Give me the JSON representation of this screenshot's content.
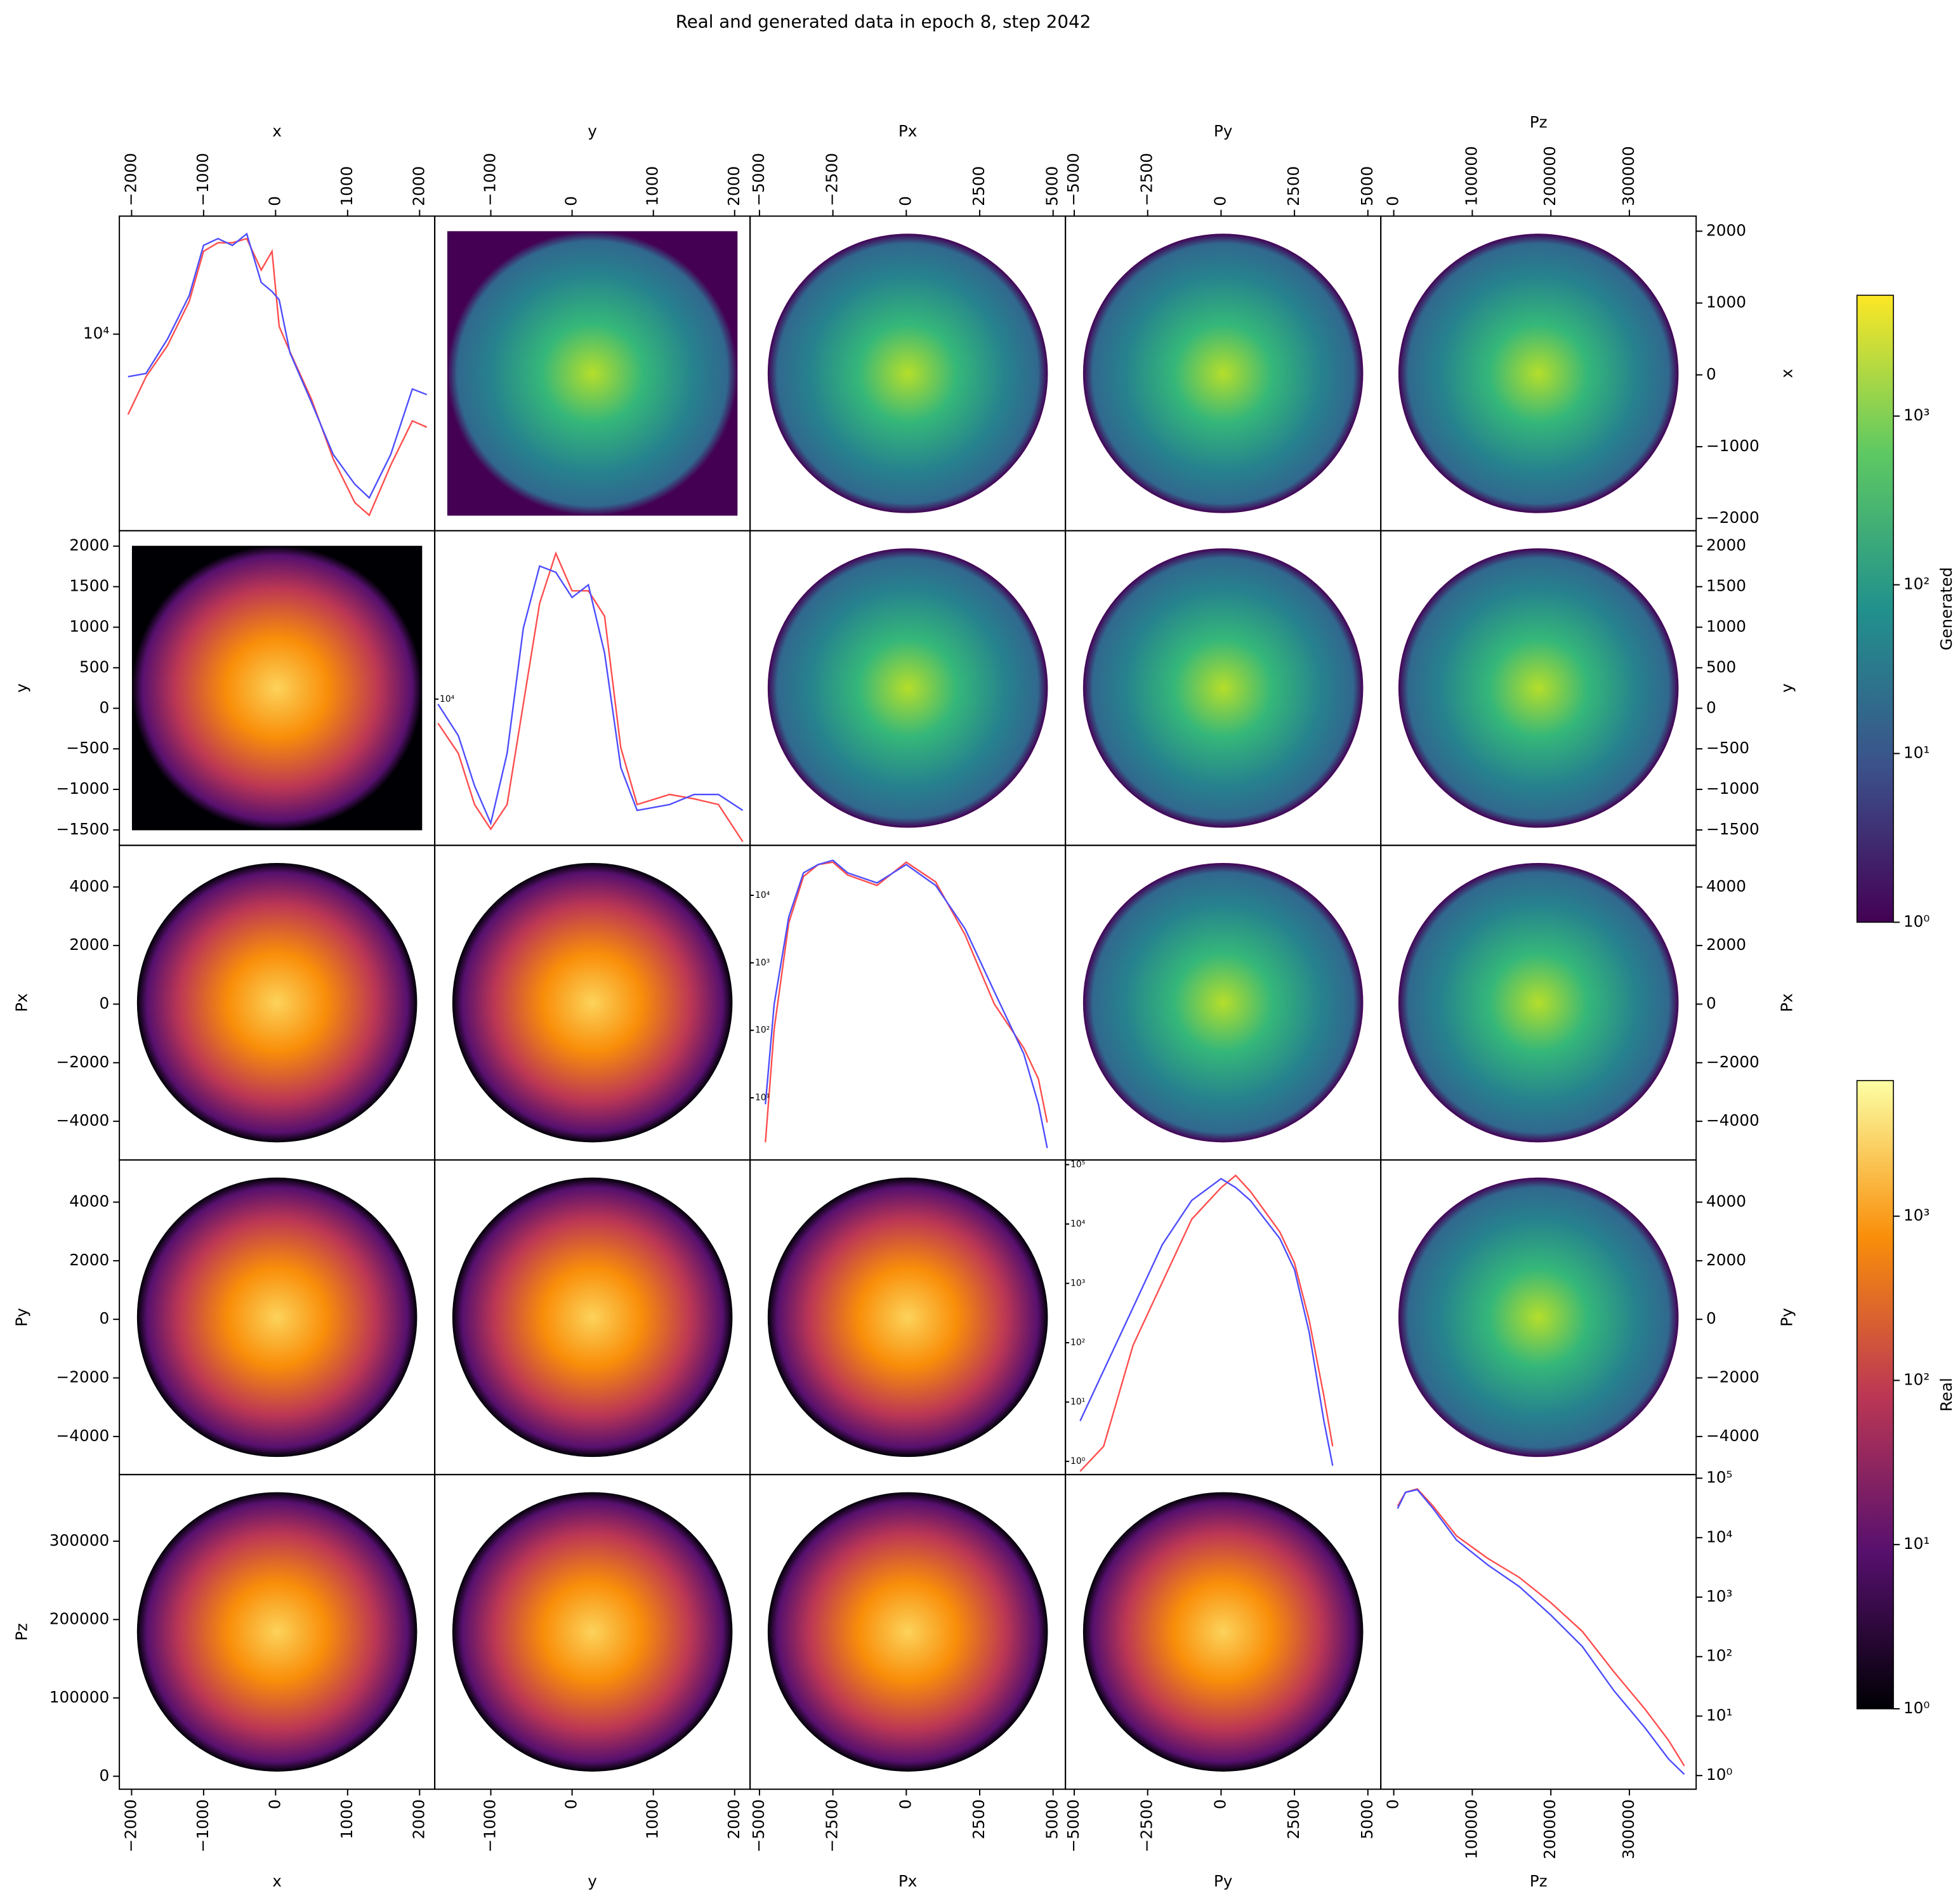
{
  "chart_data": {
    "type": "pairplot",
    "title": "Real and generated data in epoch 8, step 2042",
    "log_scale": true,
    "variables": [
      {
        "name": "x",
        "lim": [
          -2170,
          2210
        ],
        "col_ticks": [
          {
            "value": -2000,
            "label": "−2000"
          },
          {
            "value": -1000,
            "label": "−1000"
          },
          0,
          1000,
          2000
        ],
        "row_ticks": [
          {
            "value": -2000,
            "label": "−2000"
          },
          {
            "value": -1000,
            "label": "−1000"
          },
          0,
          1000,
          2000
        ]
      },
      {
        "name": "y",
        "lim": [
          -1690,
          2190
        ],
        "col_ticks": [
          {
            "value": -1000,
            "label": "−1000"
          },
          0,
          1000,
          2000
        ],
        "row_ticks": [
          {
            "value": -1500,
            "label": "−1500"
          },
          {
            "value": -1000,
            "label": "−1000"
          },
          {
            "value": -500,
            "label": "−500"
          },
          0,
          500,
          1000,
          1500,
          2000
        ]
      },
      {
        "name": "Px",
        "lim": [
          -5320,
          5420
        ],
        "col_ticks": [
          {
            "value": -5000,
            "label": "−5000"
          },
          {
            "value": -2500,
            "label": "−2500"
          },
          0,
          2500,
          5000
        ],
        "row_ticks": [
          {
            "value": -4000,
            "label": "−4000"
          },
          {
            "value": -2000,
            "label": "−2000"
          },
          0,
          2000,
          4000
        ]
      },
      {
        "name": "Py",
        "lim": [
          -5300,
          5440
        ],
        "col_ticks": [
          {
            "value": -5000,
            "label": "−5000"
          },
          {
            "value": -2500,
            "label": "−2500"
          },
          0,
          2500,
          5000
        ],
        "row_ticks": [
          {
            "value": -4000,
            "label": "−4000"
          },
          {
            "value": -2000,
            "label": "−2000"
          },
          0,
          2000,
          4000
        ]
      },
      {
        "name": "Pz",
        "lim": [
          -16500,
          385000
        ],
        "col_ticks": [
          0,
          100000,
          200000,
          300000
        ],
        "row_ticks": [
          0,
          100000,
          200000,
          300000
        ]
      }
    ],
    "diagonal": [
      {
        "ylim": [
          1800,
          28000
        ],
        "yticks": [
          {
            "value": 10000,
            "label": "10⁴"
          }
        ],
        "x": [
          -2050,
          -1800,
          -1500,
          -1200,
          -1000,
          -800,
          -600,
          -400,
          -200,
          -50,
          50,
          200,
          500,
          800,
          1100,
          1300,
          1600,
          1900,
          2100
        ],
        "series": [
          {
            "color": "#ff4d4d",
            "values": [
              4960,
              6890,
              9060,
              13300,
              20600,
              22200,
              22200,
              23000,
              17500,
              20600,
              10700,
              8570,
              5650,
              3370,
              2300,
              2060,
              3190,
              4690,
              4440
            ]
          },
          {
            "color": "#4d4dff",
            "values": [
              6900,
              7100,
              9600,
              14000,
              21700,
              23000,
              21700,
              24000,
              15700,
              14500,
              13500,
              8500,
              5500,
              3500,
              2700,
              2400,
              3500,
              6200,
              5900
            ]
          }
        ]
      },
      {
        "ylim": [
          3000,
          40000
        ],
        "yticks": [
          {
            "value": 10000,
            "label": "10⁴"
          }
        ],
        "x": [
          -1650,
          -1400,
          -1200,
          -1000,
          -800,
          -600,
          -400,
          -200,
          0,
          200,
          400,
          600,
          800,
          1200,
          1500,
          1800,
          2100
        ],
        "series": [
          {
            "color": "#ff4d4d",
            "values": [
              8200,
              6400,
              4200,
              3430,
              4200,
              9600,
              22000,
              33200,
              24400,
              24400,
              19800,
              6700,
              4200,
              4560,
              4400,
              4200,
              3090
            ]
          },
          {
            "color": "#4d4dff",
            "values": [
              9600,
              7400,
              4900,
              3600,
              6400,
              17900,
              29900,
              28400,
              23100,
              25600,
              14600,
              5700,
              4000,
              4200,
              4560,
              4560,
              4000
            ]
          }
        ]
      },
      {
        "ylim": [
          1.2,
          55000
        ],
        "yticks": [
          {
            "value": 10,
            "label": "10¹"
          },
          {
            "value": 100,
            "label": "10²"
          },
          {
            "value": 1000,
            "label": "10³"
          },
          {
            "value": 10000,
            "label": "10⁴"
          }
        ],
        "x": [
          -4800,
          -4500,
          -4000,
          -3500,
          -3000,
          -2500,
          -2000,
          -1000,
          0,
          1000,
          2000,
          3000,
          4000,
          4500,
          4800
        ],
        "series": [
          {
            "color": "#ff4d4d",
            "values": [
              2.2,
              105,
              3900,
              19000,
              28600,
              31000,
              20000,
              14000,
              31000,
              15800,
              2600,
              245,
              55,
              19,
              4.3
            ]
          },
          {
            "color": "#4d4dff",
            "values": [
              8,
              245,
              4800,
              21500,
              28600,
              33000,
              21500,
              15300,
              28600,
              14000,
              3200,
              375,
              45,
              8,
              1.8
            ]
          }
        ]
      },
      {
        "ylim": [
          0.6,
          120000
        ],
        "yticks": [
          {
            "value": 1,
            "label": "10⁰"
          },
          {
            "value": 10,
            "label": "10¹"
          },
          {
            "value": 100,
            "label": "10²"
          },
          {
            "value": 1000,
            "label": "10³"
          },
          {
            "value": 10000,
            "label": "10⁴"
          },
          {
            "value": 100000,
            "label": "10⁵"
          }
        ],
        "x": [
          -4800,
          -4000,
          -3000,
          -2000,
          -1000,
          0,
          500,
          1000,
          2000,
          2500,
          3000,
          3500,
          3800
        ],
        "series": [
          {
            "color": "#ff4d4d",
            "values": [
              0.68,
              1.8,
              90,
              1040,
              12000,
              41000,
              66000,
              35500,
              7400,
              2200,
              240,
              12.6,
              1.8
            ]
          },
          {
            "color": "#4d4dff",
            "values": [
              4.8,
              34,
              390,
              4500,
              25000,
              58000,
              41000,
              25000,
              5700,
              1700,
              150,
              4.8,
              0.85
            ]
          }
        ]
      },
      {
        "ylim": [
          0.59,
          115000
        ],
        "yticks": [
          {
            "value": 1,
            "label": "10⁰"
          },
          {
            "value": 10,
            "label": "10¹"
          },
          {
            "value": 100,
            "label": "10²"
          },
          {
            "value": 1000,
            "label": "10³"
          },
          {
            "value": 10000,
            "label": "10⁴"
          },
          {
            "value": 100000,
            "label": "10⁵"
          }
        ],
        "x": [
          5000,
          15000,
          30000,
          50000,
          80000,
          120000,
          160000,
          200000,
          240000,
          280000,
          320000,
          350000,
          370000
        ],
        "series": [
          {
            "color": "#ff4d4d",
            "values": [
              34000,
              58000,
              66000,
              34000,
              10700,
              4460,
              2140,
              810,
              265,
              56,
              13,
              3.9,
              1.45
            ]
          },
          {
            "color": "#4d4dff",
            "values": [
              31000,
              58000,
              64000,
              31000,
              9100,
              3460,
              1500,
              500,
              148,
              27,
              6.3,
              1.9,
              1.05
            ]
          }
        ]
      }
    ],
    "colorbars": [
      {
        "label": "Generated",
        "colormap": "viridis",
        "lim": [
          1,
          5200
        ],
        "ticks": [
          {
            "value": 1,
            "label": "10⁰"
          },
          {
            "value": 10,
            "label": "10¹"
          },
          {
            "value": 100,
            "label": "10²"
          },
          {
            "value": 1000,
            "label": "10³"
          }
        ]
      },
      {
        "label": "Real",
        "colormap": "inferno",
        "lim": [
          1,
          6700
        ],
        "ticks": [
          {
            "value": 1,
            "label": "10⁰"
          },
          {
            "value": 10,
            "label": "10¹"
          },
          {
            "value": 100,
            "label": "10²"
          },
          {
            "value": 1000,
            "label": "10³"
          }
        ]
      }
    ]
  }
}
